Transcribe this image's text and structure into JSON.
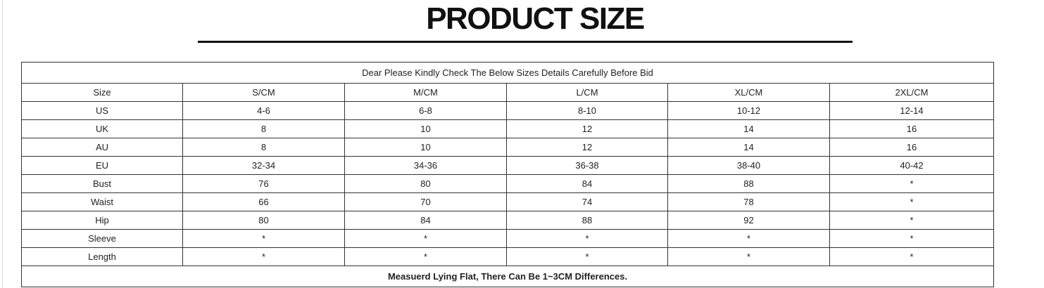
{
  "header": {
    "title": "PRODUCT SIZE"
  },
  "table": {
    "caption": "Dear Please Kindly Check The Below Sizes Details Carefully Before Bid",
    "columns": [
      "Size",
      "S/CM",
      "M/CM",
      "L/CM",
      "XL/CM",
      "2XL/CM"
    ],
    "rows": [
      [
        "US",
        "4-6",
        "6-8",
        "8-10",
        "10-12",
        "12-14"
      ],
      [
        "UK",
        "8",
        "10",
        "12",
        "14",
        "16"
      ],
      [
        "AU",
        "8",
        "10",
        "12",
        "14",
        "16"
      ],
      [
        "EU",
        "32-34",
        "34-36",
        "36-38",
        "38-40",
        "40-42"
      ],
      [
        "Bust",
        "76",
        "80",
        "84",
        "88",
        "*"
      ],
      [
        "Waist",
        "66",
        "70",
        "74",
        "78",
        "*"
      ],
      [
        "Hip",
        "80",
        "84",
        "88",
        "92",
        "*"
      ],
      [
        "Sleeve",
        "*",
        "*",
        "*",
        "*",
        "*"
      ],
      [
        "Length",
        "*",
        "*",
        "*",
        "*",
        "*"
      ]
    ],
    "footer": "Measuerd Lying Flat, There Can Be 1~3CM Differences."
  }
}
